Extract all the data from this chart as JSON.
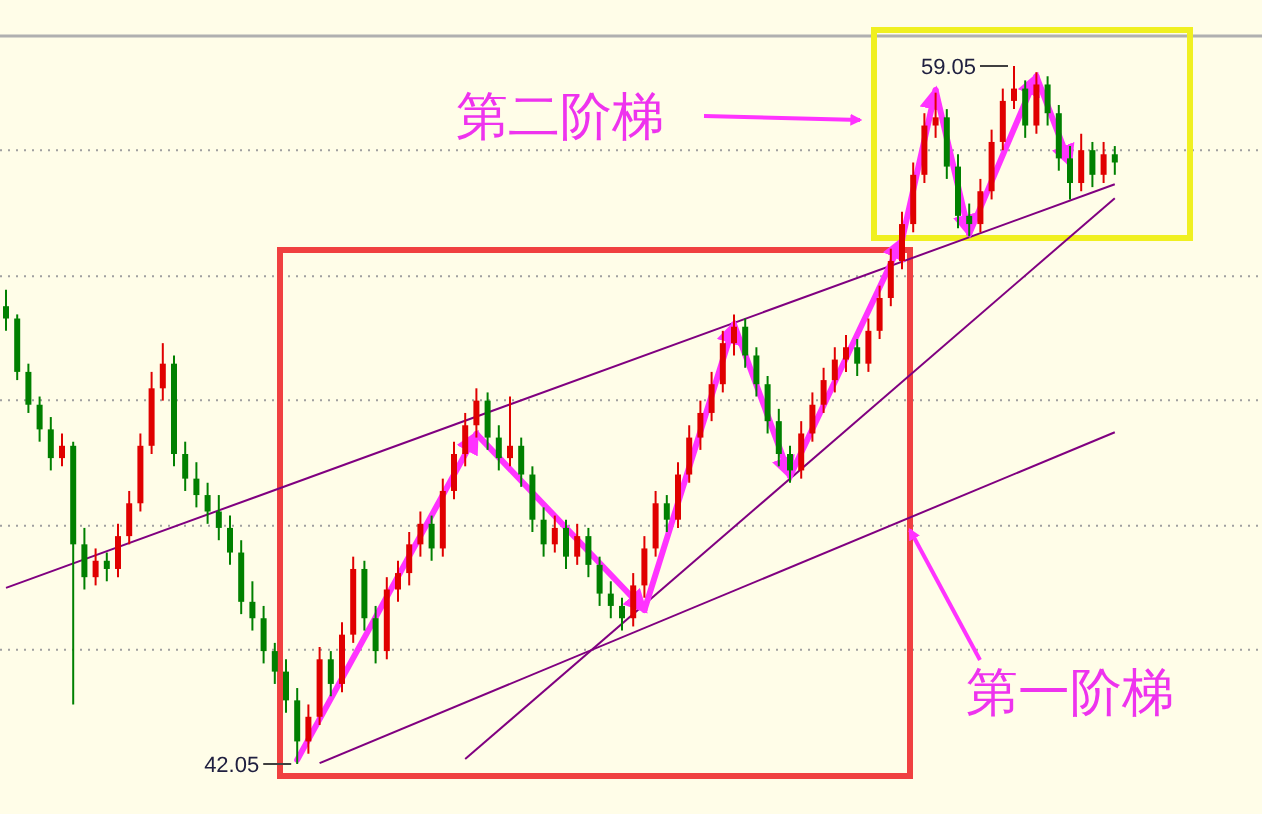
{
  "chart_data": {
    "type": "candlestick",
    "categories": [
      null,
      null,
      null,
      null,
      null,
      null,
      null,
      null,
      null,
      null,
      null,
      null,
      null,
      null,
      null,
      null,
      null,
      null,
      null,
      null,
      null,
      null,
      null,
      null,
      null,
      null,
      null,
      null,
      null,
      null,
      null,
      null,
      null,
      null,
      null,
      null,
      null,
      null,
      null,
      null,
      null,
      null,
      null,
      null,
      null,
      null,
      null,
      null,
      null,
      null,
      null,
      null,
      null,
      null,
      null,
      null,
      null,
      null,
      null,
      null,
      null,
      null,
      null,
      null,
      null,
      null,
      null,
      null,
      null,
      null,
      null,
      null,
      null,
      null,
      null,
      null,
      null,
      null,
      null,
      null,
      null,
      null,
      null,
      null,
      null,
      null,
      null,
      null,
      null,
      null,
      null,
      null,
      null,
      null,
      null,
      null,
      null,
      null,
      null,
      null
    ],
    "ohlc": [
      [
        53.2,
        53.6,
        52.6,
        52.9
      ],
      [
        52.9,
        53.0,
        51.4,
        51.6
      ],
      [
        51.6,
        51.8,
        50.6,
        50.8
      ],
      [
        50.8,
        51.0,
        49.9,
        50.2
      ],
      [
        50.2,
        50.5,
        49.2,
        49.5
      ],
      [
        49.5,
        50.1,
        49.3,
        49.8
      ],
      [
        49.8,
        49.9,
        43.5,
        47.4
      ],
      [
        47.4,
        47.8,
        46.3,
        46.6
      ],
      [
        46.6,
        47.3,
        46.4,
        47.0
      ],
      [
        47.0,
        47.2,
        46.5,
        46.8
      ],
      [
        46.8,
        47.9,
        46.6,
        47.6
      ],
      [
        47.6,
        48.7,
        47.4,
        48.4
      ],
      [
        48.4,
        50.1,
        48.2,
        49.8
      ],
      [
        49.8,
        51.6,
        49.6,
        51.2
      ],
      [
        51.2,
        52.3,
        50.9,
        51.8
      ],
      [
        51.8,
        52.0,
        49.3,
        49.6
      ],
      [
        49.6,
        49.9,
        48.7,
        49.0
      ],
      [
        49.0,
        49.4,
        48.3,
        48.6
      ],
      [
        48.6,
        48.9,
        47.9,
        48.2
      ],
      [
        48.2,
        48.6,
        47.5,
        47.8
      ],
      [
        47.8,
        48.1,
        46.9,
        47.2
      ],
      [
        47.2,
        47.5,
        45.7,
        46.0
      ],
      [
        46.0,
        46.5,
        45.3,
        45.6
      ],
      [
        45.6,
        45.9,
        44.5,
        44.8
      ],
      [
        44.8,
        45.0,
        44.0,
        44.3
      ],
      [
        44.3,
        44.6,
        43.3,
        43.6
      ],
      [
        43.6,
        43.9,
        42.05,
        42.6
      ],
      [
        42.6,
        43.5,
        42.3,
        43.2
      ],
      [
        43.2,
        44.9,
        43.0,
        44.6
      ],
      [
        44.6,
        44.8,
        43.7,
        44.0
      ],
      [
        44.0,
        45.5,
        43.8,
        45.2
      ],
      [
        45.2,
        47.1,
        45.0,
        46.8
      ],
      [
        46.8,
        47.0,
        45.3,
        45.6
      ],
      [
        45.6,
        45.9,
        44.5,
        44.8
      ],
      [
        44.8,
        46.6,
        44.6,
        46.3
      ],
      [
        46.3,
        47.0,
        46.0,
        46.7
      ],
      [
        46.7,
        47.7,
        46.4,
        47.4
      ],
      [
        47.4,
        48.2,
        47.1,
        47.9
      ],
      [
        47.9,
        48.1,
        47.0,
        47.3
      ],
      [
        47.3,
        49.0,
        47.1,
        48.7
      ],
      [
        48.7,
        49.9,
        48.5,
        49.6
      ],
      [
        49.6,
        50.6,
        49.3,
        50.3
      ],
      [
        50.3,
        51.2,
        50.0,
        50.9
      ],
      [
        50.9,
        51.1,
        49.7,
        50.0
      ],
      [
        50.0,
        50.3,
        49.2,
        49.5
      ],
      [
        49.5,
        51.0,
        49.3,
        49.8
      ],
      [
        49.8,
        50.0,
        48.8,
        49.1
      ],
      [
        49.1,
        49.3,
        47.7,
        48.0
      ],
      [
        48.0,
        48.3,
        47.1,
        47.4
      ],
      [
        47.4,
        48.1,
        47.2,
        47.8
      ],
      [
        47.8,
        48.0,
        46.8,
        47.1
      ],
      [
        47.1,
        47.9,
        46.9,
        47.6
      ],
      [
        47.6,
        47.8,
        46.6,
        46.9
      ],
      [
        46.9,
        47.1,
        45.9,
        46.2
      ],
      [
        46.2,
        46.5,
        45.6,
        45.9
      ],
      [
        45.9,
        46.1,
        45.3,
        45.6
      ],
      [
        45.6,
        46.7,
        45.4,
        46.4
      ],
      [
        46.4,
        47.6,
        46.1,
        47.3
      ],
      [
        47.3,
        48.7,
        47.1,
        48.4
      ],
      [
        48.4,
        48.6,
        47.7,
        48.0
      ],
      [
        48.0,
        49.4,
        47.8,
        49.1
      ],
      [
        49.1,
        50.3,
        48.9,
        50.0
      ],
      [
        50.0,
        50.9,
        49.7,
        50.6
      ],
      [
        50.6,
        51.6,
        50.4,
        51.3
      ],
      [
        51.3,
        52.6,
        51.1,
        52.3
      ],
      [
        52.3,
        53.0,
        52.0,
        52.7
      ],
      [
        52.7,
        52.9,
        51.7,
        52.0
      ],
      [
        52.0,
        52.2,
        51.0,
        51.3
      ],
      [
        51.3,
        51.5,
        50.1,
        50.4
      ],
      [
        50.4,
        50.7,
        49.3,
        49.6
      ],
      [
        49.6,
        49.8,
        48.9,
        49.2
      ],
      [
        49.2,
        50.4,
        49.0,
        50.1
      ],
      [
        50.1,
        51.1,
        49.9,
        50.8
      ],
      [
        50.8,
        51.7,
        50.6,
        51.4
      ],
      [
        51.4,
        52.2,
        51.1,
        51.9
      ],
      [
        51.9,
        52.5,
        51.6,
        52.2
      ],
      [
        52.2,
        52.4,
        51.5,
        51.8
      ],
      [
        51.8,
        52.9,
        51.6,
        52.6
      ],
      [
        52.6,
        53.7,
        52.4,
        53.4
      ],
      [
        53.4,
        54.6,
        53.2,
        54.3
      ],
      [
        54.3,
        55.5,
        54.1,
        55.2
      ],
      [
        55.2,
        56.7,
        55.0,
        56.4
      ],
      [
        56.4,
        57.9,
        56.2,
        57.6
      ],
      [
        57.6,
        58.4,
        57.3,
        57.8
      ],
      [
        57.8,
        58.0,
        56.3,
        56.6
      ],
      [
        56.6,
        56.9,
        55.1,
        55.4
      ],
      [
        55.4,
        55.7,
        54.9,
        55.2
      ],
      [
        55.2,
        56.3,
        55.0,
        56.0
      ],
      [
        56.0,
        57.5,
        55.8,
        57.2
      ],
      [
        57.2,
        58.5,
        57.0,
        58.2
      ],
      [
        58.2,
        59.05,
        58.0,
        58.5
      ],
      [
        58.5,
        58.7,
        57.3,
        57.6
      ],
      [
        57.6,
        58.9,
        57.4,
        58.6
      ],
      [
        58.6,
        58.8,
        57.6,
        57.9
      ],
      [
        57.9,
        58.1,
        56.5,
        56.8
      ],
      [
        56.8,
        57.1,
        55.8,
        56.2
      ],
      [
        56.2,
        57.4,
        56.0,
        57.0
      ],
      [
        57.0,
        57.2,
        56.1,
        56.4
      ],
      [
        56.4,
        57.2,
        56.2,
        56.9
      ],
      [
        56.9,
        57.1,
        56.4,
        56.7
      ]
    ],
    "series": [
      {
        "type": "line",
        "color": "#800080",
        "values": [
          46.34,
          null,
          null,
          null,
          null,
          null,
          null,
          null,
          null,
          null,
          null,
          null,
          null,
          null,
          null,
          null,
          null,
          null,
          null,
          null,
          null,
          null,
          null,
          null,
          null,
          null,
          null,
          null,
          null,
          null,
          null,
          null,
          null,
          null,
          null,
          null,
          null,
          null,
          null,
          null,
          null,
          null,
          null,
          null,
          null,
          null,
          null,
          null,
          null,
          null,
          null,
          null,
          null,
          null,
          null,
          null,
          null,
          null,
          null,
          null,
          null,
          null,
          null,
          null,
          null,
          null,
          null,
          null,
          null,
          null,
          null,
          null,
          null,
          null,
          null,
          null,
          null,
          null,
          null,
          null,
          null,
          null,
          null,
          null,
          null,
          null,
          null,
          null,
          null,
          null,
          null,
          null,
          null,
          null,
          null,
          null,
          null,
          null,
          null,
          56.17
        ]
      },
      {
        "type": "line",
        "color": "#800080",
        "values": [
          null,
          null,
          null,
          null,
          null,
          null,
          null,
          null,
          null,
          null,
          null,
          null,
          null,
          null,
          null,
          null,
          null,
          null,
          null,
          null,
          null,
          null,
          null,
          null,
          null,
          null,
          null,
          null,
          42.07,
          null,
          null,
          null,
          null,
          null,
          null,
          null,
          null,
          null,
          null,
          null,
          null,
          null,
          null,
          null,
          null,
          null,
          null,
          null,
          null,
          null,
          null,
          null,
          null,
          null,
          null,
          null,
          null,
          null,
          null,
          null,
          null,
          null,
          null,
          null,
          null,
          null,
          null,
          null,
          null,
          null,
          null,
          null,
          null,
          null,
          null,
          null,
          null,
          null,
          null,
          null,
          null,
          null,
          null,
          null,
          null,
          null,
          null,
          null,
          null,
          null,
          null,
          null,
          null,
          null,
          null,
          null,
          null,
          null,
          null,
          50.13
        ]
      },
      {
        "type": "line",
        "color": "#800080",
        "values": [
          null,
          null,
          null,
          null,
          null,
          null,
          null,
          null,
          null,
          null,
          null,
          null,
          null,
          null,
          null,
          null,
          null,
          null,
          null,
          null,
          null,
          null,
          null,
          null,
          null,
          null,
          null,
          null,
          null,
          null,
          null,
          null,
          null,
          null,
          null,
          null,
          null,
          null,
          null,
          null,
          null,
          42.17,
          null,
          null,
          null,
          null,
          null,
          null,
          null,
          null,
          null,
          null,
          null,
          null,
          null,
          null,
          null,
          null,
          null,
          null,
          null,
          null,
          null,
          null,
          null,
          null,
          null,
          null,
          null,
          null,
          null,
          null,
          null,
          null,
          null,
          null,
          null,
          null,
          null,
          null,
          null,
          null,
          null,
          null,
          null,
          null,
          null,
          null,
          null,
          null,
          null,
          null,
          null,
          null,
          null,
          null,
          null,
          null,
          null,
          55.83
        ]
      },
      {
        "type": "line",
        "color": "#ff33ff",
        "values": [
          null,
          null,
          null,
          null,
          null,
          null,
          null,
          null,
          null,
          null,
          null,
          null,
          null,
          null,
          null,
          null,
          null,
          null,
          null,
          null,
          null,
          null,
          null,
          null,
          null,
          null,
          42.15,
          null,
          null,
          null,
          null,
          null,
          null,
          null,
          null,
          null,
          null,
          null,
          null,
          null,
          null,
          null,
          50.09,
          null,
          null,
          null,
          null,
          null,
          null,
          null,
          null,
          null,
          null,
          null,
          null,
          null,
          null,
          45.8,
          null,
          null,
          null,
          null,
          null,
          null,
          null,
          52.76,
          null,
          null,
          null,
          null,
          49.06,
          null,
          null,
          null,
          null,
          null,
          null,
          null,
          null,
          null,
          54.81,
          null,
          null,
          58.46,
          null,
          null,
          54.96,
          null,
          null,
          null,
          null,
          null,
          58.8,
          null,
          null,
          56.66,
          null,
          null,
          null,
          null
        ]
      }
    ],
    "yticks": [
      {
        "value": 57.0,
        "label": null
      },
      {
        "value": 53.93,
        "label": null
      },
      {
        "value": 50.91,
        "label": null
      },
      {
        "value": 47.85,
        "label": null
      },
      {
        "value": 44.83,
        "label": null
      }
    ],
    "grid": "y",
    "annotations": [
      "59.05",
      "42.05",
      "第二阶梯",
      "第一阶梯"
    ]
  }
}
